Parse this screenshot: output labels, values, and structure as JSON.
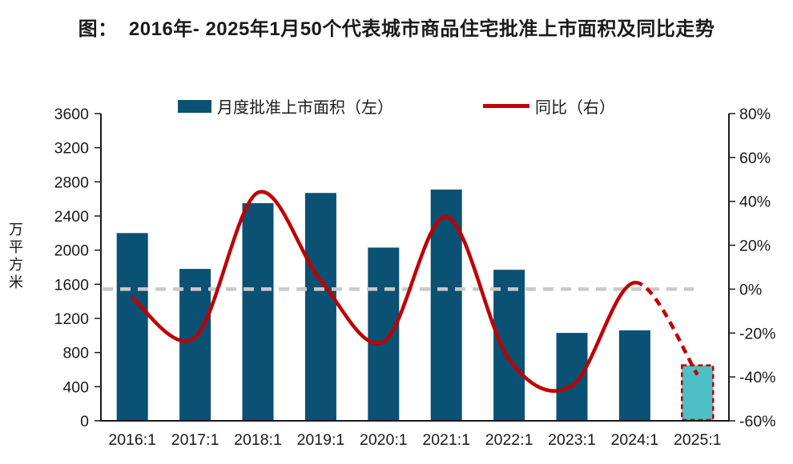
{
  "title": "图：  2016年- 2025年1月50个代表城市商品住宅批准上市面积及同比走势",
  "legend": {
    "bars_label": "月度批准上市面积（左）",
    "line_label": "同比（右）"
  },
  "colors": {
    "bar": "#0A5173",
    "highlight_bar": "#4DBFC6",
    "highlight_border": "#C00000",
    "line": "#C00000",
    "reference_line": "#C9C9C9",
    "axis": "#1a1a1a"
  },
  "chart_data": {
    "type": "bar+line",
    "title": "图：  2016年- 2025年1月50个代表城市商品住宅批准上市面积及同比走势",
    "categories": [
      "2016:1",
      "2017:1",
      "2018:1",
      "2019:1",
      "2020:1",
      "2021:1",
      "2022:1",
      "2023:1",
      "2024:1",
      "2025:1"
    ],
    "series": [
      {
        "name": "月度批准上市面积（左）",
        "type": "bar",
        "axis": "left",
        "unit": "万平方米",
        "values": [
          2200,
          1780,
          2550,
          2670,
          2030,
          2710,
          1770,
          1030,
          1060,
          650
        ],
        "highlight_last": true
      },
      {
        "name": "同比（右）",
        "type": "line",
        "axis": "right",
        "unit": "%",
        "values": [
          -4,
          -22,
          44,
          4,
          -24,
          33,
          -32,
          -44,
          3,
          -39
        ],
        "dashed_from_index": 8
      }
    ],
    "left_axis": {
      "title": "万平方米",
      "min": 0,
      "max": 3600,
      "step": 400,
      "tick_labels": [
        "3600",
        "3200",
        "2800",
        "2400",
        "2000",
        "1600",
        "1200",
        "800",
        "400",
        "0"
      ]
    },
    "right_axis": {
      "min": -60,
      "max": 80,
      "step": 20,
      "tick_labels": [
        "80%",
        "60%",
        "40%",
        "20%",
        "0%",
        "-20%",
        "-40%",
        "-60%"
      ]
    },
    "reference_line": {
      "axis": "right",
      "value": 0,
      "style": "dashed"
    },
    "legend_position": "top",
    "grid": false
  }
}
